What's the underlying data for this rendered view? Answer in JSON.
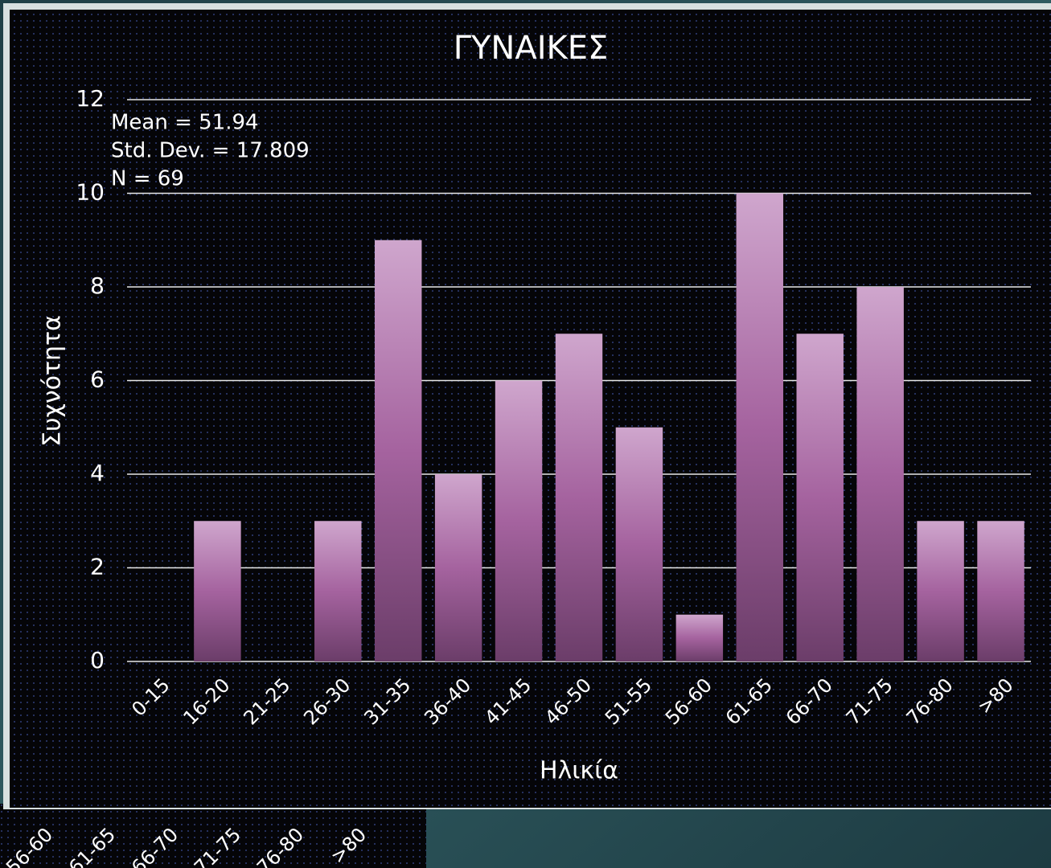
{
  "chart_data": {
    "type": "bar",
    "title": "ΓΥΝΑΙΚΕΣ",
    "xlabel": "Ηλικία",
    "ylabel": "Συχνότητα",
    "annotations": [
      "Mean = 51.94",
      "Std. Dev. = 17.809",
      "N = 69"
    ],
    "categories": [
      "0-15",
      "16-20",
      "21-25",
      "26-30",
      "31-35",
      "36-40",
      "41-45",
      "46-50",
      "51-55",
      "56-60",
      "61-65",
      "66-70",
      "71-75",
      "76-80",
      ">80"
    ],
    "values": [
      0,
      3,
      0,
      3,
      9,
      4,
      6,
      7,
      5,
      1,
      10,
      7,
      8,
      3,
      3
    ],
    "color": "#a5639f",
    "ylim": [
      0,
      12
    ],
    "yticks": [
      0,
      2,
      4,
      6,
      8,
      10,
      12
    ],
    "grid": true
  },
  "behind_labels": [
    "56-60",
    "61-65",
    "66-70",
    "71-75",
    "76-80",
    ">80"
  ]
}
